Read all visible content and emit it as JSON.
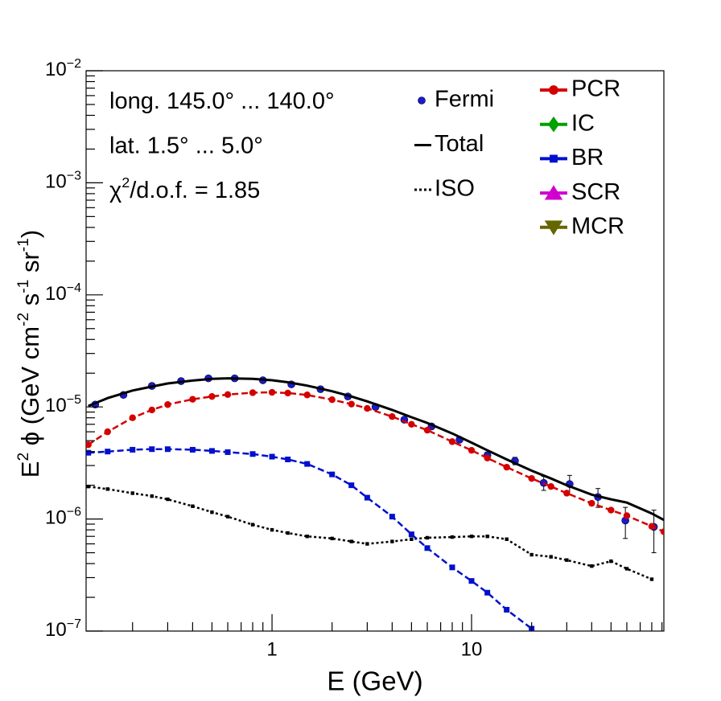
{
  "chart_data": {
    "type": "line",
    "x_label": "E (GeV)",
    "y_label": [
      "E",
      "2",
      " ϕ (GeV cm",
      "-2",
      " s",
      "-1",
      " sr",
      "-1",
      ")"
    ],
    "annotations": [
      [
        "long. 145.0° ... 140.0°"
      ],
      [
        "lat. 1.5° ... 5.0°"
      ],
      [
        "χ",
        "2",
        "/d.o.f. = 1.85"
      ]
    ],
    "log_x": true,
    "log_y": true,
    "xlim": [
      0.117,
      92
    ],
    "ylim": [
      1e-07,
      0.01
    ],
    "xticks": [
      1,
      10
    ],
    "xminorticks": [
      0.2,
      0.3,
      0.4,
      0.5,
      0.6,
      0.7,
      0.8,
      0.9,
      2,
      3,
      4,
      5,
      6,
      7,
      8,
      9,
      20,
      30,
      40,
      50,
      60,
      70,
      80,
      90
    ],
    "yticks": [
      {
        "value": 1e-07,
        "label": "10−7"
      },
      {
        "value": 1e-06,
        "label": "10−6"
      },
      {
        "value": 1e-05,
        "label": "10−5"
      },
      {
        "value": 0.0001,
        "label": "10−4"
      },
      {
        "value": 0.001,
        "label": "10−3"
      },
      {
        "value": 0.01,
        "label": "10−2"
      }
    ],
    "yminorticks": [
      2e-07,
      3e-07,
      4e-07,
      5e-07,
      6e-07,
      7e-07,
      8e-07,
      9e-07,
      2e-06,
      3e-06,
      4e-06,
      5e-06,
      6e-06,
      7e-06,
      8e-06,
      9e-06,
      2e-05,
      3e-05,
      4e-05,
      5e-05,
      6e-05,
      7e-05,
      8e-05,
      9e-05,
      0.0002,
      0.0003,
      0.0004,
      0.0005,
      0.0006,
      0.0007,
      0.0008,
      0.0009,
      0.002,
      0.003,
      0.004,
      0.005,
      0.006,
      0.007,
      0.008,
      0.009
    ],
    "x": [
      0.12,
      0.15,
      0.2,
      0.25,
      0.3,
      0.4,
      0.5,
      0.6,
      0.8,
      1,
      1.2,
      1.5,
      2,
      2.5,
      3,
      4,
      5,
      6,
      8,
      10,
      12,
      15,
      20,
      25,
      30,
      40,
      50,
      60,
      80,
      92
    ],
    "series": [
      {
        "name": "Fermi",
        "color": "#1a1acc",
        "marker": "dot",
        "line": "none",
        "x": [
          0.13,
          0.18,
          0.25,
          0.35,
          0.48,
          0.65,
          0.9,
          1.25,
          1.75,
          2.4,
          3.3,
          4.6,
          6.3,
          8.7,
          12,
          16.5,
          23,
          31,
          43,
          59,
          82
        ],
        "values": [
          1.05e-05,
          1.28e-05,
          1.54e-05,
          1.7e-05,
          1.8e-05,
          1.8e-05,
          1.73e-05,
          1.59e-05,
          1.44e-05,
          1.24e-05,
          1e-05,
          7.7e-06,
          6.7e-06,
          5.1e-06,
          3.7e-06,
          3.3e-06,
          2.1e-06,
          2.05e-06,
          1.57e-06,
          9.7e-07,
          8.5e-07
        ],
        "errors": [
          3e-07,
          3e-07,
          3e-07,
          3e-07,
          3e-07,
          3e-07,
          3e-07,
          3e-07,
          3e-07,
          3e-07,
          2.5e-07,
          2.5e-07,
          2.5e-07,
          2.5e-07,
          2.5e-07,
          2.5e-07,
          3e-07,
          4e-07,
          3e-07,
          3e-07,
          3.5e-07
        ]
      },
      {
        "name": "Total",
        "color": "#000000",
        "marker": "none",
        "line": "solid",
        "values": [
          1.02e-05,
          1.2e-05,
          1.4e-05,
          1.52e-05,
          1.62e-05,
          1.72e-05,
          1.78e-05,
          1.8e-05,
          1.78e-05,
          1.73e-05,
          1.66e-05,
          1.55e-05,
          1.38e-05,
          1.24e-05,
          1.12e-05,
          9.4e-06,
          8.1e-06,
          7.2e-06,
          5.8e-06,
          4.8e-06,
          4.1e-06,
          3.4e-06,
          2.7e-06,
          2.3e-06,
          2e-06,
          1.65e-06,
          1.5e-06,
          1.4e-06,
          1.12e-06,
          9.8e-07
        ]
      },
      {
        "name": "ISO",
        "color": "#000000",
        "marker": "small-square",
        "line": "dotted",
        "values": [
          1.95e-06,
          1.85e-06,
          1.7e-06,
          1.6e-06,
          1.5e-06,
          1.3e-06,
          1.15e-06,
          1.05e-06,
          8.9e-07,
          8e-07,
          7.5e-07,
          7e-07,
          6.7e-07,
          6.3e-07,
          6e-07,
          6.3e-07,
          6.6e-07,
          6.8e-07,
          6.9e-07,
          7e-07,
          7e-07,
          6.6e-07,
          4.8e-07,
          4.6e-07,
          4.3e-07,
          3.8e-07,
          4.2e-07,
          3.6e-07,
          2.9e-07,
          null
        ]
      },
      {
        "name": "PCR",
        "color": "#d40000",
        "marker": "circle",
        "line": "dashed",
        "values": [
          4.6e-06,
          6e-06,
          8e-06,
          9.4e-06,
          1.05e-05,
          1.17e-05,
          1.24e-05,
          1.29e-05,
          1.34e-05,
          1.35e-05,
          1.33e-05,
          1.28e-05,
          1.16e-05,
          1.06e-05,
          9.7e-06,
          8.2e-06,
          7e-06,
          6.2e-06,
          4.9e-06,
          4.1e-06,
          3.5e-06,
          2.9e-06,
          2.3e-06,
          1.95e-06,
          1.7e-06,
          1.38e-06,
          1.2e-06,
          1.07e-06,
          8.6e-07,
          7.7e-07
        ]
      },
      {
        "name": "IC",
        "color": "#00a000",
        "marker": "diamond",
        "line": "solid"
      },
      {
        "name": "BR",
        "color": "#0010cc",
        "marker": "square",
        "line": "dashed",
        "values": [
          3.9e-06,
          4e-06,
          4.15e-06,
          4.2e-06,
          4.2e-06,
          4.15e-06,
          4.05e-06,
          3.95e-06,
          3.8e-06,
          3.6e-06,
          3.4e-06,
          3.1e-06,
          2.5e-06,
          2e-06,
          1.55e-06,
          1.05e-06,
          7.3e-07,
          5.5e-07,
          3.7e-07,
          2.8e-07,
          2.2e-07,
          1.55e-07,
          1.05e-07,
          null,
          null,
          null,
          null,
          null,
          null,
          null
        ]
      },
      {
        "name": "SCR",
        "color": "#d000d0",
        "marker": "triangle-up",
        "line": "solid"
      },
      {
        "name": "MCR",
        "color": "#666600",
        "marker": "triangle-down",
        "line": "solid"
      }
    ]
  }
}
